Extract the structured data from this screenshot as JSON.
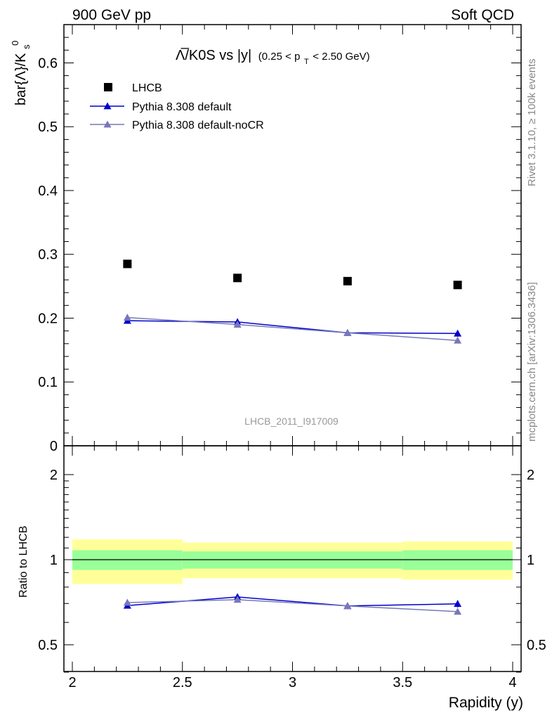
{
  "header": {
    "left": "900 GeV pp",
    "right": "Soft QCD"
  },
  "side_text": {
    "top": "Rivet 3.1.10, ≥ 100k events",
    "bottom": "mcplots.cern.ch [arXiv:1306.3436]"
  },
  "chart_data": [
    {
      "type": "scatter",
      "title": "Λ̅/K0S vs |y|",
      "title_cut": "(0.25 < p",
      "title_cut_sub": "T",
      "title_cut_end": " < 2.50 GeV)",
      "ylabel": "bar{Λ}/K",
      "ylabel_sub": "s",
      "ylabel_sup": "0",
      "watermark": "LHCB_2011_I917009",
      "xlim": [
        2,
        4
      ],
      "ylim": [
        0,
        0.66
      ],
      "yticks": [
        0,
        0.1,
        0.2,
        0.3,
        0.4,
        0.5,
        0.6
      ],
      "ytick_labels": [
        "0",
        "0.1",
        "0.2",
        "0.3",
        "0.4",
        "0.5",
        "0.6"
      ],
      "legend_position": "top-left",
      "series": [
        {
          "name": "LHCB",
          "color": "#000000",
          "marker": "square",
          "x": [
            2.25,
            2.75,
            3.25,
            3.75
          ],
          "y": [
            0.285,
            0.263,
            0.258,
            0.252
          ]
        },
        {
          "name": "Pythia 8.308 default",
          "color": "#0000cc",
          "marker": "triangle",
          "x": [
            2.25,
            2.75,
            3.25,
            3.75
          ],
          "y": [
            0.196,
            0.194,
            0.177,
            0.176
          ],
          "err": [
            0.003,
            0.005,
            0.004,
            0.005
          ]
        },
        {
          "name": "Pythia 8.308 default-noCR",
          "color": "#7777bb",
          "marker": "triangle",
          "x": [
            2.25,
            2.75,
            3.25,
            3.75
          ],
          "y": [
            0.201,
            0.19,
            0.177,
            0.165
          ],
          "err": [
            0.003,
            0.003,
            0.003,
            0.003
          ]
        }
      ]
    },
    {
      "type": "scatter",
      "ylabel": "Ratio to LHCB",
      "xlabel": "Rapidity (y)",
      "xlim": [
        2,
        4
      ],
      "ylim": [
        0.35,
        2.25
      ],
      "xticks": [
        2,
        2.5,
        3,
        3.5,
        4
      ],
      "xtick_labels": [
        "2",
        "2.5",
        "3",
        "3.5",
        "4"
      ],
      "yticks": [
        0.5,
        1,
        2
      ],
      "ytick_labels": [
        "0.5",
        "1",
        "2"
      ],
      "bands": [
        {
          "x": [
            2.0,
            2.5
          ],
          "inner": [
            0.92,
            1.08
          ],
          "outer": [
            0.82,
            1.18
          ]
        },
        {
          "x": [
            2.5,
            3.0
          ],
          "inner": [
            0.93,
            1.07
          ],
          "outer": [
            0.86,
            1.15
          ]
        },
        {
          "x": [
            3.0,
            3.5
          ],
          "inner": [
            0.93,
            1.07
          ],
          "outer": [
            0.86,
            1.15
          ]
        },
        {
          "x": [
            3.5,
            4.0
          ],
          "inner": [
            0.92,
            1.08
          ],
          "outer": [
            0.85,
            1.16
          ]
        }
      ],
      "band_colors": {
        "inner": "#99ff99",
        "outer": "#ffff99"
      },
      "series": [
        {
          "name": "Pythia 8.308 default",
          "color": "#0000cc",
          "x": [
            2.25,
            2.75,
            3.25,
            3.75
          ],
          "y": [
            0.688,
            0.738,
            0.686,
            0.698
          ],
          "err": [
            0.01,
            0.015,
            0.015,
            0.02
          ]
        },
        {
          "name": "Pythia 8.308 default-noCR",
          "color": "#7777bb",
          "x": [
            2.25,
            2.75,
            3.25,
            3.75
          ],
          "y": [
            0.705,
            0.722,
            0.686,
            0.655
          ],
          "err": [
            0.01,
            0.01,
            0.01,
            0.01
          ]
        }
      ]
    }
  ]
}
